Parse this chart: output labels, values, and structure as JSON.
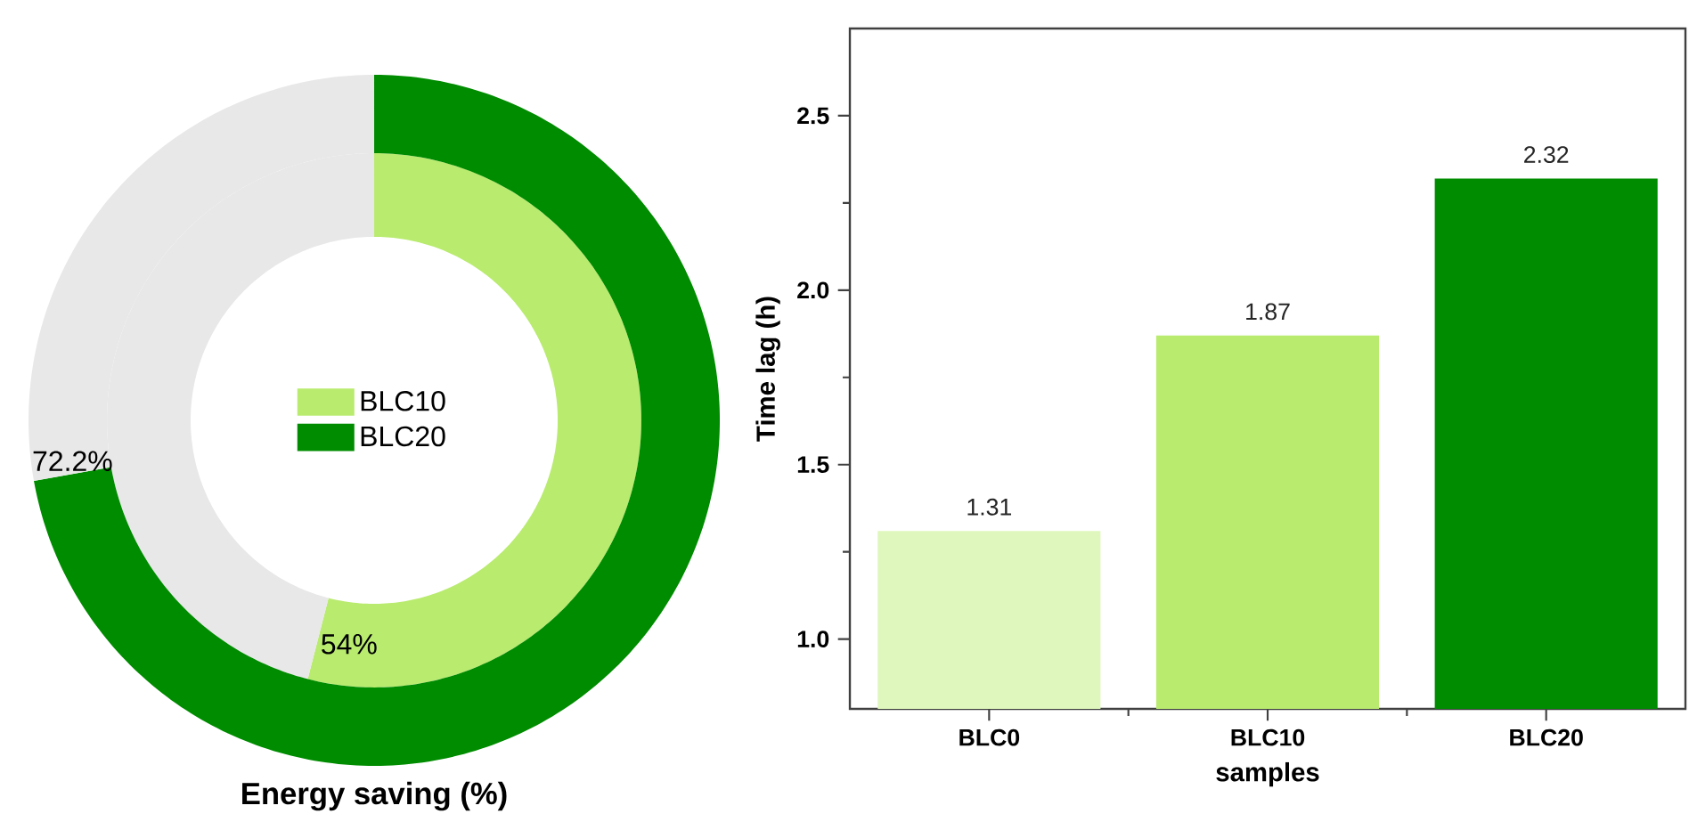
{
  "chart_data": [
    {
      "type": "donut",
      "title": "Energy saving (%)",
      "categories": [
        null,
        null
      ],
      "legend": "center",
      "series": [
        {
          "name": "BLC10",
          "values": [
            54,
            46
          ],
          "colors": [
            "#b9eb6f",
            "#e8e8e8"
          ],
          "value_labels": [
            "54%",
            null
          ]
        },
        {
          "name": "BLC20",
          "values": [
            72.2,
            27.8
          ],
          "colors": [
            "#008c00",
            "#e8e8e8"
          ],
          "value_labels": [
            "72.2%",
            null
          ]
        }
      ]
    },
    {
      "type": "bar",
      "xlabel": "samples",
      "ylabel": "Time lag (h)",
      "categories": [
        "BLC0",
        "BLC10",
        "BLC20"
      ],
      "values": [
        1.31,
        1.87,
        2.32
      ],
      "colors": [
        "#dff7bc",
        "#b9eb6f",
        "#008c00"
      ],
      "ylim": [
        0.8,
        2.75
      ],
      "yticks": [
        {
          "value": 1,
          "label": "1.0"
        },
        {
          "value": 1.5,
          "label": "1.5"
        },
        {
          "value": 2,
          "label": "2.0"
        },
        {
          "value": 2.5,
          "label": "2.5"
        }
      ],
      "data_labels": true
    }
  ]
}
